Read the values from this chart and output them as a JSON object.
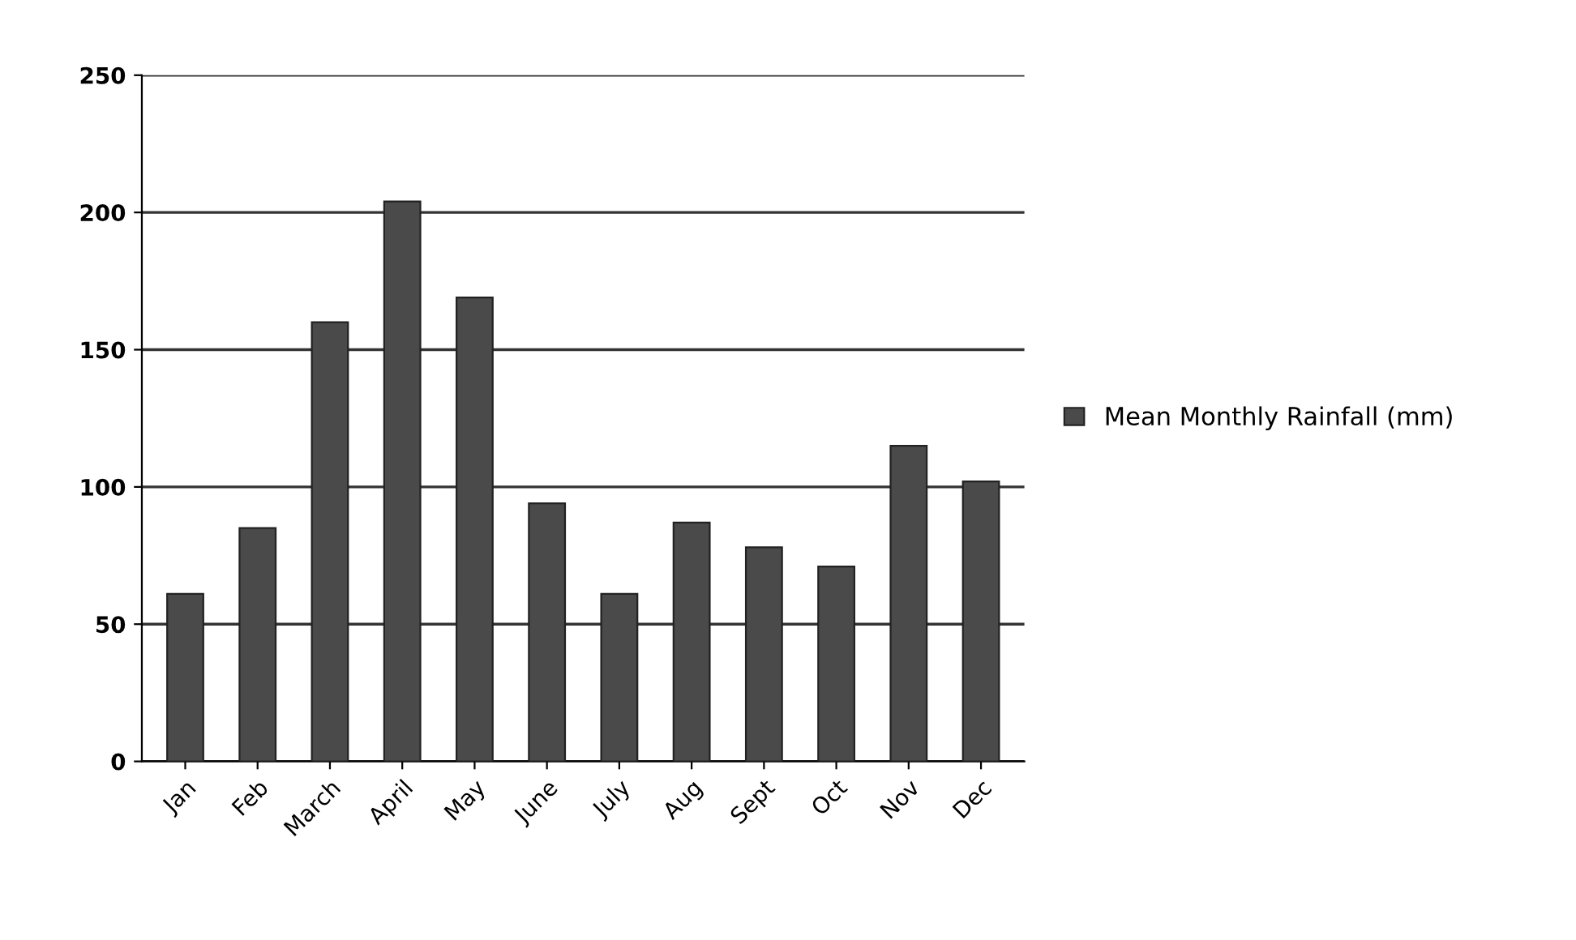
{
  "chart_data": {
    "type": "bar",
    "categories": [
      "Jan",
      "Feb",
      "March",
      "April",
      "May",
      "June",
      "July",
      "Aug",
      "Sept",
      "Oct",
      "Nov",
      "Dec"
    ],
    "series": [
      {
        "name": "Mean Monthly Rainfall (mm)",
        "color": "#4a4a4a",
        "values": [
          61,
          85,
          160,
          204,
          169,
          94,
          61,
          87,
          78,
          71,
          115,
          102
        ]
      }
    ],
    "ylim": [
      0,
      250
    ],
    "yticks": [
      0,
      50,
      100,
      150,
      200,
      250
    ],
    "grid": "y",
    "legend": "right"
  }
}
